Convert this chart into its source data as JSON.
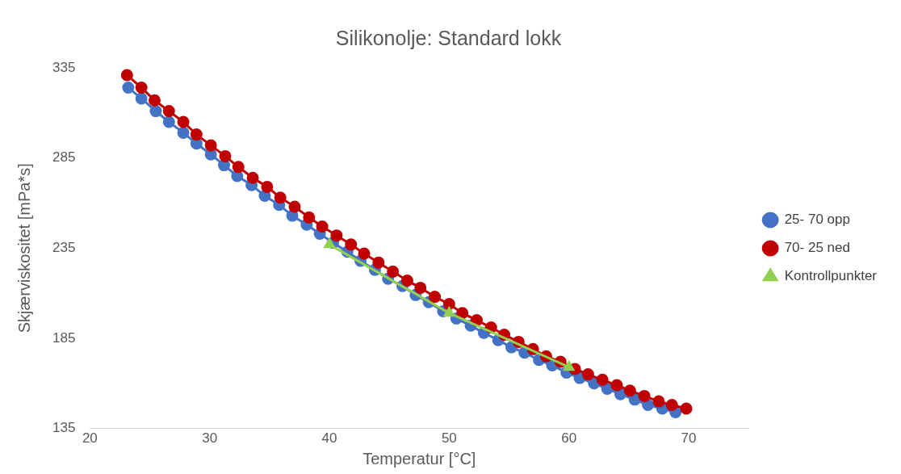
{
  "chart_data": {
    "type": "line",
    "title": "Silikonolje: Standard lokk",
    "xlabel": "Temperatur [°C]",
    "ylabel": "Skjærviskositet [mPa*s]",
    "xlim": [
      20,
      75
    ],
    "xticks": [
      20,
      30,
      40,
      50,
      60,
      70
    ],
    "ylim": [
      135,
      335
    ],
    "yticks": [
      135,
      185,
      235,
      285,
      335
    ],
    "grid": false,
    "legend": "right",
    "line_style": "solid",
    "series": [
      {
        "name": "25- 70 opp",
        "color": "#4472c4",
        "marker": "circle",
        "x": [
          23.2,
          24.3,
          25.5,
          26.6,
          27.8,
          28.9,
          30.1,
          31.2,
          32.3,
          33.5,
          34.6,
          35.8,
          36.9,
          38.1,
          39.2,
          40.3,
          41.5,
          42.6,
          43.8,
          44.9,
          46.1,
          47.2,
          48.3,
          49.5,
          50.6,
          51.8,
          52.9,
          54.1,
          55.2,
          56.3,
          57.5,
          58.6,
          59.8,
          60.9,
          62.1,
          63.2,
          64.3,
          65.5,
          66.6,
          67.8,
          68.9
        ],
        "values": [
          324,
          318,
          311,
          305,
          299,
          293,
          287,
          281,
          275,
          270,
          264,
          259,
          253,
          248,
          243,
          238,
          233,
          228,
          223,
          218,
          214,
          209,
          205,
          200,
          196,
          192,
          188,
          184,
          180,
          177,
          173,
          170,
          166,
          163,
          160,
          157,
          154,
          151,
          148,
          146,
          144
        ]
      },
      {
        "name": "70- 25 ned",
        "color": "#c00000",
        "marker": "circle",
        "x": [
          23.1,
          24.3,
          25.4,
          26.6,
          27.8,
          28.9,
          30.1,
          31.3,
          32.4,
          33.6,
          34.8,
          35.9,
          37.1,
          38.3,
          39.4,
          40.6,
          41.8,
          42.9,
          44.1,
          45.3,
          46.5,
          47.6,
          48.8,
          50.0,
          51.1,
          52.3,
          53.5,
          54.6,
          55.8,
          57.0,
          58.1,
          59.3,
          60.5,
          61.6,
          62.8,
          64.0,
          65.1,
          66.3,
          67.5,
          68.6,
          69.8
        ],
        "values": [
          331,
          324,
          317,
          311,
          305,
          298,
          292,
          286,
          280,
          274,
          269,
          263,
          258,
          252,
          247,
          242,
          237,
          232,
          227,
          222,
          217,
          213,
          208,
          204,
          199,
          195,
          191,
          187,
          183,
          179,
          175,
          172,
          168,
          165,
          162,
          159,
          156,
          153,
          150,
          148,
          146
        ]
      },
      {
        "name": "Kontrollpunkter",
        "color": "#92d050",
        "marker": "triangle",
        "x": [
          40,
          50,
          60
        ],
        "values": [
          237,
          199,
          169
        ]
      }
    ]
  }
}
